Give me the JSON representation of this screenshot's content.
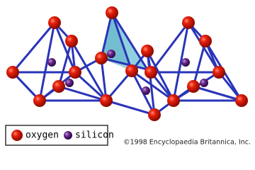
{
  "legend": {
    "items": [
      {
        "label": "oxygen"
      },
      {
        "label": "silicon"
      }
    ]
  },
  "credit": "©1998 Encyclopaedia Britannica, Inc."
}
